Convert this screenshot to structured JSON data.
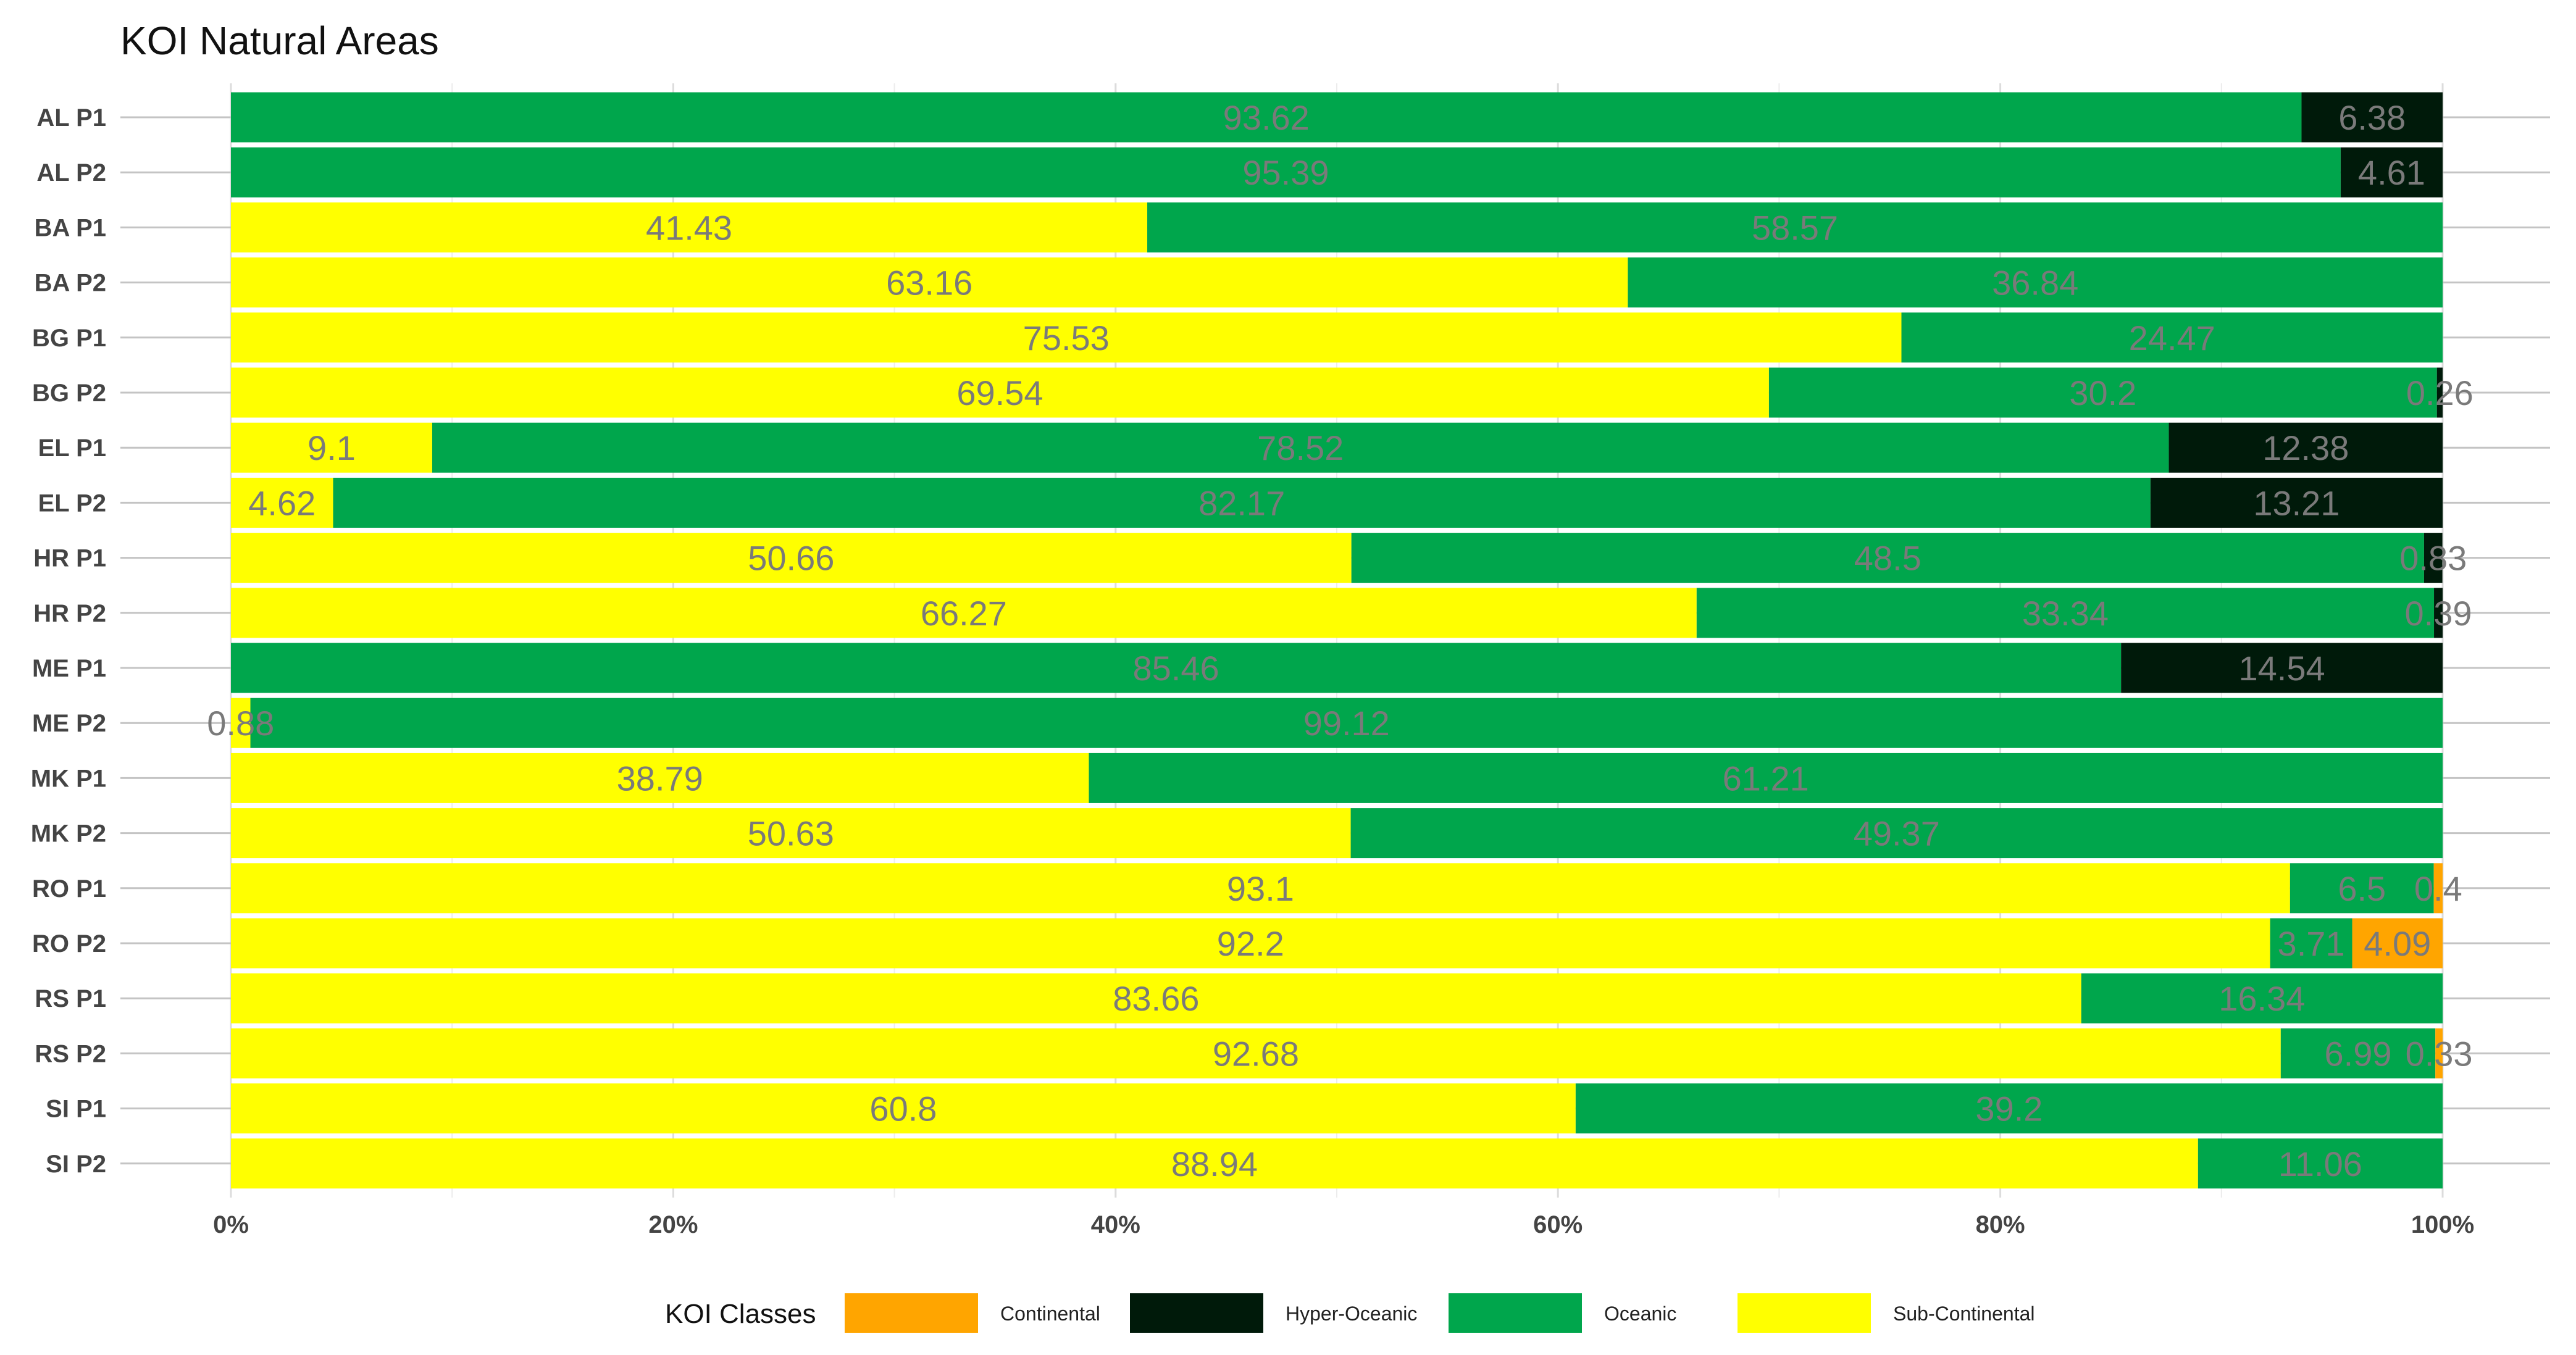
{
  "chart_data": {
    "type": "bar",
    "orientation": "horizontal",
    "stacked": true,
    "title": "KOI Natural Areas",
    "xlabel": "",
    "ylabel": "",
    "xlim": [
      0,
      100
    ],
    "x_ticks": [
      "0%",
      "20%",
      "40%",
      "60%",
      "80%",
      "100%"
    ],
    "categories": [
      "AL P1",
      "AL P2",
      "BA P1",
      "BA P2",
      "BG P1",
      "BG P2",
      "EL P1",
      "EL P2",
      "HR P1",
      "HR P2",
      "ME P1",
      "ME P2",
      "MK P1",
      "MK P2",
      "RO P1",
      "RO P2",
      "RS P1",
      "RS P2",
      "SI P1",
      "SI P2"
    ],
    "stack_order": [
      "Sub-Continental",
      "Oceanic",
      "Hyper-Oceanic",
      "Continental"
    ],
    "series": [
      {
        "name": "Sub-Continental",
        "color": "#FFFF00",
        "values": [
          null,
          null,
          41.43,
          63.16,
          75.53,
          69.54,
          9.1,
          4.62,
          50.66,
          66.27,
          null,
          0.88,
          38.79,
          50.63,
          93.1,
          92.2,
          83.66,
          92.68,
          60.8,
          88.94
        ]
      },
      {
        "name": "Oceanic",
        "color": "#00A64C",
        "values": [
          93.62,
          95.39,
          58.57,
          36.84,
          24.47,
          30.2,
          78.52,
          82.17,
          48.5,
          33.34,
          85.46,
          99.12,
          61.21,
          49.37,
          6.5,
          3.71,
          16.34,
          6.99,
          39.2,
          11.06
        ]
      },
      {
        "name": "Hyper-Oceanic",
        "color": "#001A0A",
        "values": [
          6.38,
          4.61,
          null,
          null,
          null,
          0.26,
          12.38,
          13.21,
          0.83,
          0.39,
          14.54,
          null,
          null,
          null,
          null,
          null,
          null,
          null,
          null,
          null
        ]
      },
      {
        "name": "Continental",
        "color": "#FFA500",
        "values": [
          null,
          null,
          null,
          null,
          null,
          null,
          null,
          null,
          null,
          null,
          null,
          null,
          null,
          null,
          0.4,
          4.09,
          null,
          0.33,
          null,
          null
        ]
      }
    ],
    "legend": {
      "title": "KOI Classes",
      "position": "bottom",
      "entries": [
        "Continental",
        "Hyper-Oceanic",
        "Oceanic",
        "Sub-Continental"
      ]
    },
    "grid": true
  }
}
